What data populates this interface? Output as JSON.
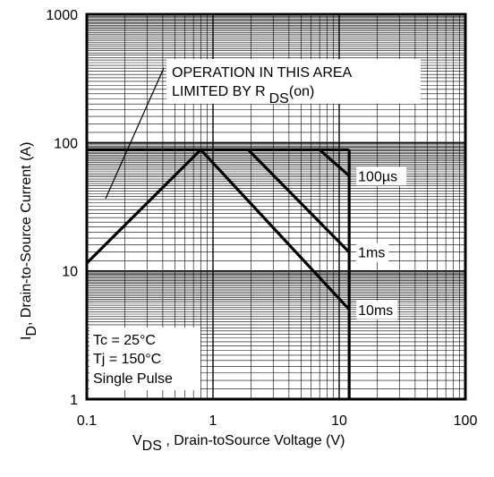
{
  "chart_data": {
    "type": "line",
    "xlabel_sym": "V",
    "xlabel_sub": "DS",
    "xlabel_rest": " , Drain-toSource Voltage (V)",
    "ylabel_sym": "I",
    "ylabel_sub": "D",
    "ylabel_rest": ",  Drain-to-Source Current (A)",
    "x_scale": "log",
    "y_scale": "log",
    "xlim": [
      0.1,
      100
    ],
    "ylim": [
      1,
      1000
    ],
    "x_ticks": [
      "0.1",
      "1",
      "10",
      "100"
    ],
    "y_ticks": [
      "1",
      "10",
      "100",
      "1000"
    ],
    "grid": true,
    "annotation": {
      "line1": "OPERATION IN THIS AREA",
      "line2_main": "LIMITED BY R",
      "line2_sub": "DS",
      "line2_tail": "(on)"
    },
    "conditions": [
      "Tc = 25°C",
      "Tj = 150°C",
      "Single Pulse"
    ],
    "current_limit": 88,
    "voltage_limit": 12,
    "series": [
      {
        "name": "100µs",
        "points": [
          [
            7,
            88
          ],
          [
            12,
            55
          ]
        ]
      },
      {
        "name": "1ms",
        "points": [
          [
            1.9,
            88
          ],
          [
            12,
            14
          ]
        ]
      },
      {
        "name": "10ms",
        "points": [
          [
            0.1,
            11.5
          ],
          [
            0.8,
            88
          ],
          [
            12,
            5
          ]
        ]
      }
    ]
  }
}
